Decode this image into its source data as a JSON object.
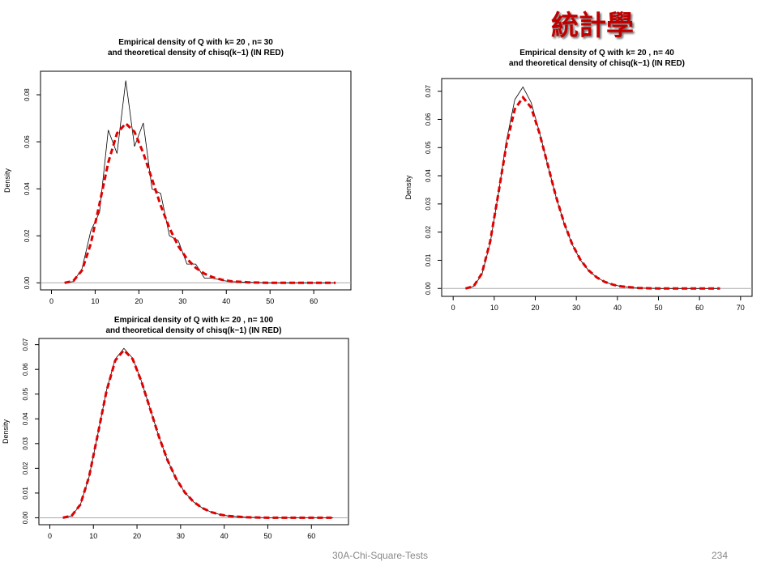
{
  "header": {
    "title": "統計學"
  },
  "footer": {
    "text": "30A-Chi-Square-Tests",
    "page_number": "234"
  },
  "chart_data": [
    {
      "type": "line",
      "title": "Empirical density of Q with k=  20 , n= 30",
      "subtitle": "and theoretical density of chisq(k−1) (IN RED)",
      "y_label": "Density",
      "x": [
        3,
        5,
        7,
        9,
        11,
        13,
        15,
        17,
        19,
        21,
        23,
        25,
        27,
        29,
        31,
        33,
        35,
        37,
        39,
        41,
        45,
        50,
        55,
        60,
        65
      ],
      "series": [
        {
          "color": "#000000",
          "line_style": "solid",
          "values": [
            0,
            0.0005,
            0.006,
            0.022,
            0.03,
            0.065,
            0.055,
            0.086,
            0.058,
            0.068,
            0.04,
            0.038,
            0.02,
            0.018,
            0.008,
            0.008,
            0.002,
            0.002,
            0.001,
            0.0005,
            0.0002,
            0,
            0,
            0,
            0
          ]
        },
        {
          "color": "#e00000",
          "line_style": "dashed",
          "values": [
            0,
            0.0008,
            0.0053,
            0.0166,
            0.0336,
            0.0512,
            0.0636,
            0.0678,
            0.0642,
            0.0552,
            0.0441,
            0.0329,
            0.0233,
            0.0157,
            0.0102,
            0.0064,
            0.0039,
            0.0023,
            0.0013,
            0.0007,
            0.0002,
            0,
            0,
            0,
            0
          ]
        }
      ],
      "xlim": [
        -2.5,
        68.5
      ],
      "xticks": [
        0,
        10,
        20,
        30,
        40,
        50,
        60
      ],
      "ylim": [
        -0.003,
        0.09
      ],
      "yticks": [
        {
          "value": 0,
          "label": "0.00"
        },
        0.02,
        0.04,
        0.06,
        0.08
      ]
    },
    {
      "type": "line",
      "title": "Empirical density of Q with k=  20 , n= 40",
      "subtitle": "and theoretical density of chisq(k−1) (IN RED)",
      "y_label": "Density",
      "x": [
        3,
        5,
        7,
        9,
        11,
        13,
        15,
        17,
        19,
        21,
        23,
        25,
        27,
        29,
        31,
        33,
        35,
        37,
        39,
        41,
        45,
        50,
        55,
        60,
        65
      ],
      "series": [
        {
          "color": "#000000",
          "line_style": "solid",
          "values": [
            0,
            0.0007,
            0.005,
            0.016,
            0.0335,
            0.0525,
            0.067,
            0.0715,
            0.066,
            0.0555,
            0.044,
            0.0328,
            0.0232,
            0.0156,
            0.0101,
            0.0063,
            0.0039,
            0.0023,
            0.0013,
            0.0007,
            0.0002,
            0,
            0,
            0,
            0
          ]
        },
        {
          "color": "#e00000",
          "line_style": "dashed",
          "values": [
            0,
            0.0008,
            0.0053,
            0.0166,
            0.0336,
            0.0512,
            0.0636,
            0.0678,
            0.0642,
            0.0552,
            0.0441,
            0.0329,
            0.0233,
            0.0157,
            0.0102,
            0.0064,
            0.0039,
            0.0023,
            0.0013,
            0.0007,
            0.0002,
            0,
            0,
            0,
            0
          ]
        }
      ],
      "xlim": [
        -2.8,
        72.8
      ],
      "xticks": [
        0,
        10,
        20,
        30,
        40,
        50,
        60,
        70
      ],
      "ylim": [
        -0.0028,
        0.0745
      ],
      "yticks": [
        {
          "value": 0,
          "label": "0.00"
        },
        0.01,
        0.02,
        0.03,
        0.04,
        0.05,
        0.06,
        0.07
      ]
    },
    {
      "type": "line",
      "title": "Empirical density of Q with k=  20 , n= 100",
      "subtitle": "and theoretical density of chisq(k−1) (IN RED)",
      "y_label": "Density",
      "x": [
        3,
        5,
        7,
        9,
        11,
        13,
        15,
        17,
        19,
        21,
        23,
        25,
        27,
        29,
        31,
        33,
        35,
        37,
        39,
        41,
        45,
        50,
        55,
        60,
        65
      ],
      "series": [
        {
          "color": "#000000",
          "line_style": "solid",
          "values": [
            0,
            0.0008,
            0.0052,
            0.0165,
            0.0336,
            0.0515,
            0.0642,
            0.0685,
            0.0645,
            0.0553,
            0.0441,
            0.0329,
            0.0233,
            0.0157,
            0.0102,
            0.0064,
            0.0039,
            0.0023,
            0.0013,
            0.0007,
            0.0002,
            0,
            0,
            0,
            0
          ]
        },
        {
          "color": "#e00000",
          "line_style": "dashed",
          "values": [
            0,
            0.0008,
            0.0053,
            0.0166,
            0.0336,
            0.0512,
            0.0636,
            0.0678,
            0.0642,
            0.0552,
            0.0441,
            0.0329,
            0.0233,
            0.0157,
            0.0102,
            0.0064,
            0.0039,
            0.0023,
            0.0013,
            0.0007,
            0.0002,
            0,
            0,
            0,
            0
          ]
        }
      ],
      "xlim": [
        -2.5,
        68.5
      ],
      "xticks": [
        0,
        10,
        20,
        30,
        40,
        50,
        60
      ],
      "ylim": [
        -0.0028,
        0.0725
      ],
      "yticks": [
        {
          "value": 0,
          "label": "0.00"
        },
        0.01,
        0.02,
        0.03,
        0.04,
        0.05,
        0.06,
        0.07
      ]
    }
  ]
}
